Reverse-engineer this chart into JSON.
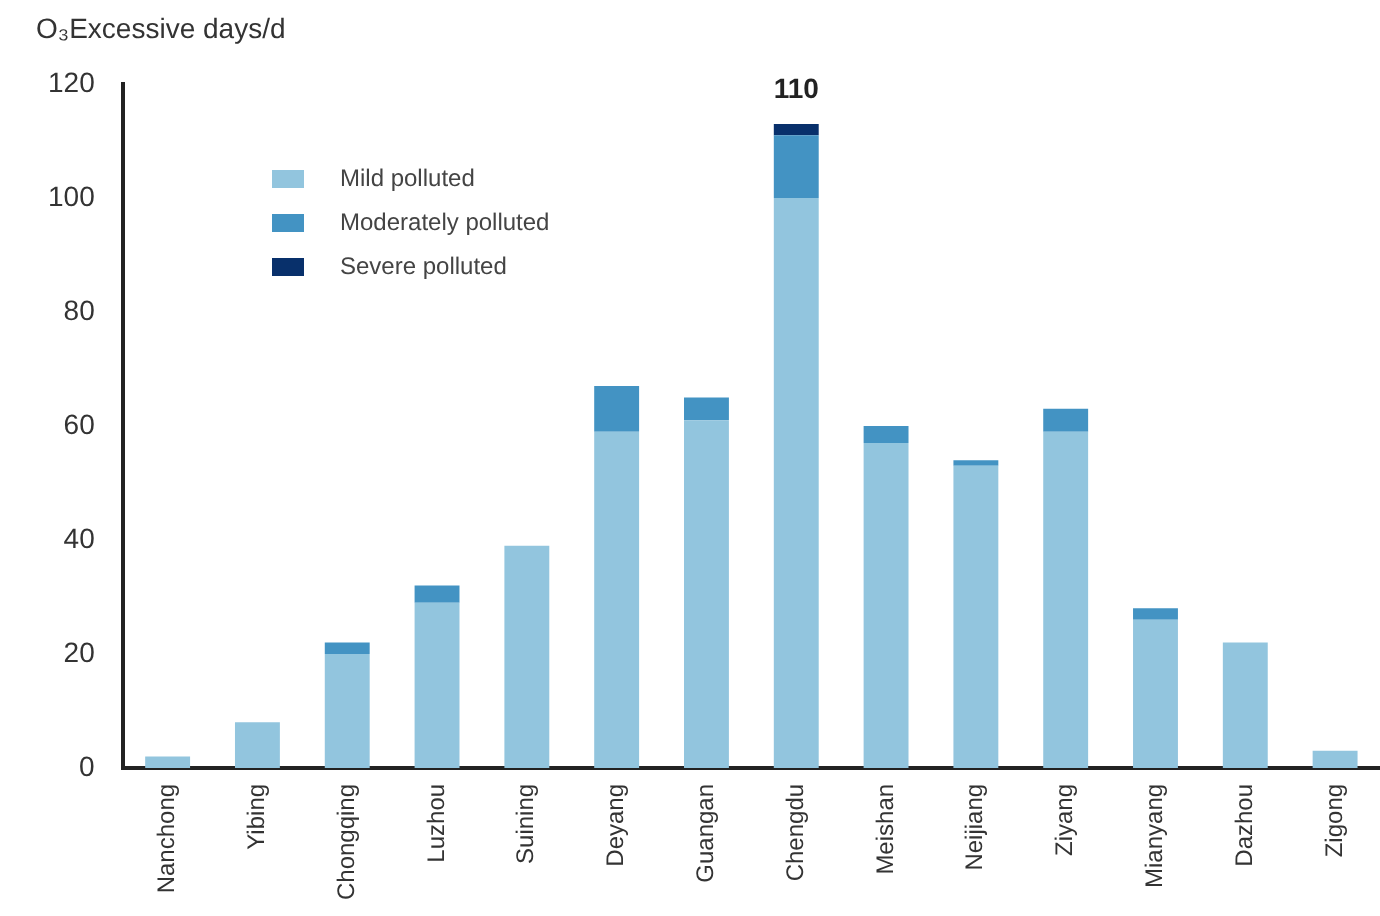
{
  "chart_data": {
    "type": "bar",
    "stacked": true,
    "ylabel": "O₃Excessive days/d",
    "categories": [
      "Nanchong",
      "Yibing",
      "Chongqing",
      "Luzhou",
      "Suining",
      "Deyang",
      "Guangan",
      "Chengdu",
      "Meishan",
      "Neijiang",
      "Ziyang",
      "Mianyang",
      "Dazhou",
      "Zigong"
    ],
    "series": [
      {
        "name": "Mild polluted",
        "color": "#92c5de",
        "values": [
          2,
          8,
          20,
          29,
          39,
          59,
          61,
          100,
          57,
          53,
          59,
          26,
          22,
          3
        ]
      },
      {
        "name": "Moderately polluted",
        "color": "#4393c3",
        "values": [
          0,
          0,
          2,
          3,
          0,
          8,
          4,
          11,
          3,
          1,
          4,
          2,
          0,
          0
        ]
      },
      {
        "name": "Severe polluted",
        "color": "#08306b",
        "values": [
          0,
          0,
          0,
          0,
          0,
          0,
          0,
          2,
          0,
          0,
          0,
          0,
          0,
          0
        ]
      }
    ],
    "annotations": [
      {
        "text": "110",
        "x": "Chengdu",
        "y": 113
      }
    ],
    "ylim": [
      0,
      120
    ],
    "yticks": [
      0,
      20,
      40,
      60,
      80,
      100,
      120
    ],
    "grid": false,
    "legend": "top left"
  }
}
